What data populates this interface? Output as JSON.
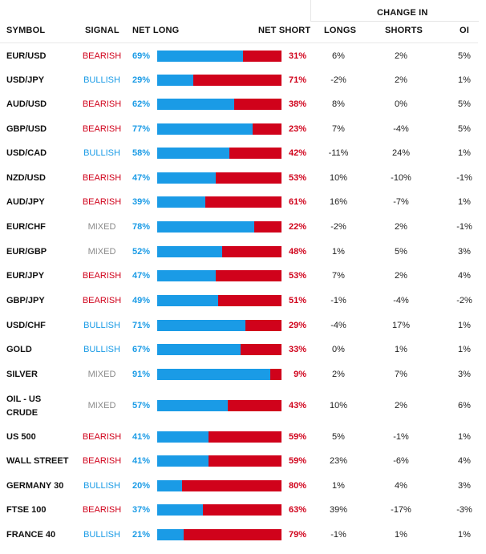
{
  "headers": {
    "symbol": "SYMBOL",
    "signal": "SIGNAL",
    "net_long": "NET LONG",
    "net_short": "NET SHORT",
    "change_in": "CHANGE IN",
    "longs": "LONGS",
    "shorts": "SHORTS",
    "oi": "OI"
  },
  "colors": {
    "long": "#1a9be6",
    "short": "#d0021b",
    "bearish": "#d0021b",
    "bullish": "#1a9be6",
    "mixed": "#8a8a8a"
  },
  "rows": [
    {
      "symbol": [
        "EUR/USD"
      ],
      "signal": "BEARISH",
      "net_long": "69%",
      "net_short": "31%",
      "long_pct": 69,
      "longs": "6%",
      "shorts": "2%",
      "oi": "5%"
    },
    {
      "symbol": [
        "USD/JPY"
      ],
      "signal": "BULLISH",
      "net_long": "29%",
      "net_short": "71%",
      "long_pct": 29,
      "longs": "-2%",
      "shorts": "2%",
      "oi": "1%"
    },
    {
      "symbol": [
        "AUD/USD"
      ],
      "signal": "BEARISH",
      "net_long": "62%",
      "net_short": "38%",
      "long_pct": 62,
      "longs": "8%",
      "shorts": "0%",
      "oi": "5%"
    },
    {
      "symbol": [
        "GBP/USD"
      ],
      "signal": "BEARISH",
      "net_long": "77%",
      "net_short": "23%",
      "long_pct": 77,
      "longs": "7%",
      "shorts": "-4%",
      "oi": "5%"
    },
    {
      "symbol": [
        "USD/CAD"
      ],
      "signal": "BULLISH",
      "net_long": "58%",
      "net_short": "42%",
      "long_pct": 58,
      "longs": "-11%",
      "shorts": "24%",
      "oi": "1%"
    },
    {
      "symbol": [
        "NZD/USD"
      ],
      "signal": "BEARISH",
      "net_long": "47%",
      "net_short": "53%",
      "long_pct": 47,
      "longs": "10%",
      "shorts": "-10%",
      "oi": "-1%"
    },
    {
      "symbol": [
        "AUD/JPY"
      ],
      "signal": "BEARISH",
      "net_long": "39%",
      "net_short": "61%",
      "long_pct": 39,
      "longs": "16%",
      "shorts": "-7%",
      "oi": "1%"
    },
    {
      "symbol": [
        "EUR/CHF"
      ],
      "signal": "MIXED",
      "net_long": "78%",
      "net_short": "22%",
      "long_pct": 78,
      "longs": "-2%",
      "shorts": "2%",
      "oi": "-1%"
    },
    {
      "symbol": [
        "EUR/GBP"
      ],
      "signal": "MIXED",
      "net_long": "52%",
      "net_short": "48%",
      "long_pct": 52,
      "longs": "1%",
      "shorts": "5%",
      "oi": "3%"
    },
    {
      "symbol": [
        "EUR/JPY"
      ],
      "signal": "BEARISH",
      "net_long": "47%",
      "net_short": "53%",
      "long_pct": 47,
      "longs": "7%",
      "shorts": "2%",
      "oi": "4%"
    },
    {
      "symbol": [
        "GBP/JPY"
      ],
      "signal": "BEARISH",
      "net_long": "49%",
      "net_short": "51%",
      "long_pct": 49,
      "longs": "-1%",
      "shorts": "-4%",
      "oi": "-2%"
    },
    {
      "symbol": [
        "USD/CHF"
      ],
      "signal": "BULLISH",
      "net_long": "71%",
      "net_short": "29%",
      "long_pct": 71,
      "longs": "-4%",
      "shorts": "17%",
      "oi": "1%"
    },
    {
      "symbol": [
        "GOLD"
      ],
      "signal": "BULLISH",
      "net_long": "67%",
      "net_short": "33%",
      "long_pct": 67,
      "longs": "0%",
      "shorts": "1%",
      "oi": "1%"
    },
    {
      "symbol": [
        "SILVER"
      ],
      "signal": "MIXED",
      "net_long": "91%",
      "net_short": "9%",
      "long_pct": 91,
      "longs": "2%",
      "shorts": "7%",
      "oi": "3%"
    },
    {
      "symbol": [
        "OIL - US",
        "CRUDE"
      ],
      "signal": "MIXED",
      "net_long": "57%",
      "net_short": "43%",
      "long_pct": 57,
      "longs": "10%",
      "shorts": "2%",
      "oi": "6%"
    },
    {
      "symbol": [
        "US 500"
      ],
      "signal": "BEARISH",
      "net_long": "41%",
      "net_short": "59%",
      "long_pct": 41,
      "longs": "5%",
      "shorts": "-1%",
      "oi": "1%"
    },
    {
      "symbol": [
        "WALL STREET"
      ],
      "signal": "BEARISH",
      "net_long": "41%",
      "net_short": "59%",
      "long_pct": 41,
      "longs": "23%",
      "shorts": "-6%",
      "oi": "4%"
    },
    {
      "symbol": [
        "GERMANY 30"
      ],
      "signal": "BULLISH",
      "net_long": "20%",
      "net_short": "80%",
      "long_pct": 20,
      "longs": "1%",
      "shorts": "4%",
      "oi": "3%"
    },
    {
      "symbol": [
        "FTSE 100"
      ],
      "signal": "BEARISH",
      "net_long": "37%",
      "net_short": "63%",
      "long_pct": 37,
      "longs": "39%",
      "shorts": "-17%",
      "oi": "-3%"
    },
    {
      "symbol": [
        "FRANCE 40"
      ],
      "signal": "BULLISH",
      "net_long": "21%",
      "net_short": "79%",
      "long_pct": 21,
      "longs": "-1%",
      "shorts": "1%",
      "oi": "1%"
    }
  ]
}
